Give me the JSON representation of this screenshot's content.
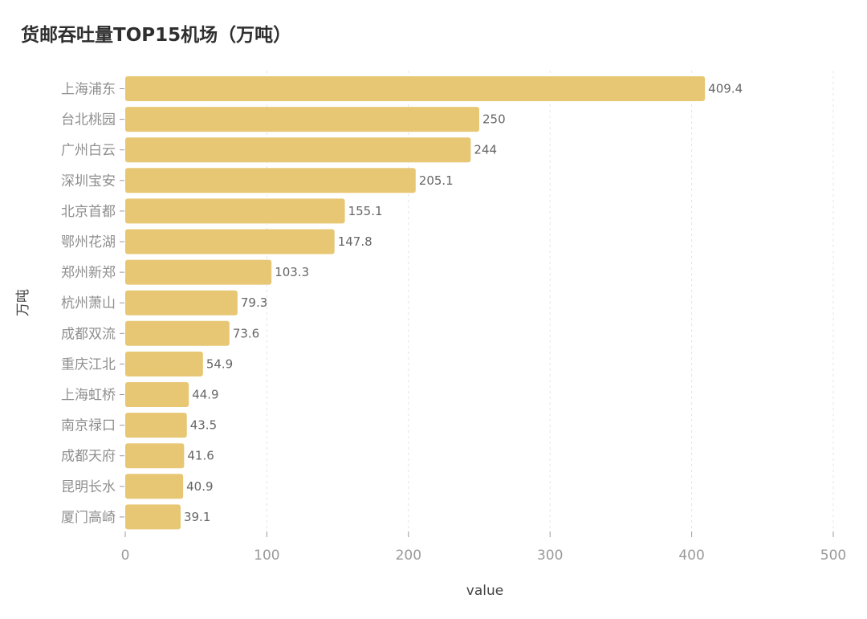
{
  "chart_data": {
    "type": "bar",
    "orientation": "horizontal",
    "title": "货邮吞吐量TOP15机场（万吨）",
    "xlabel": "value",
    "ylabel": "万吨",
    "xlim": [
      0,
      500
    ],
    "xticks": [
      0,
      100,
      200,
      300,
      400,
      500
    ],
    "categories": [
      "上海浦东",
      "台北桃园",
      "广州白云",
      "深圳宝安",
      "北京首都",
      "鄂州花湖",
      "郑州新郑",
      "杭州萧山",
      "成都双流",
      "重庆江北",
      "上海虹桥",
      "南京禄口",
      "成都天府",
      "昆明长水",
      "厦门高崎"
    ],
    "values": [
      409.4,
      250,
      244,
      205.1,
      155.1,
      147.8,
      103.3,
      79.3,
      73.6,
      54.9,
      44.9,
      43.5,
      41.6,
      40.9,
      39.1
    ],
    "value_labels": [
      "409.4",
      "250",
      "244",
      "205.1",
      "155.1",
      "147.8",
      "103.3",
      "79.3",
      "73.6",
      "54.9",
      "44.9",
      "43.5",
      "41.6",
      "40.9",
      "39.1"
    ],
    "grid": {
      "x": true,
      "y": false
    },
    "legend": "none",
    "bar_color": "#E8C774"
  }
}
